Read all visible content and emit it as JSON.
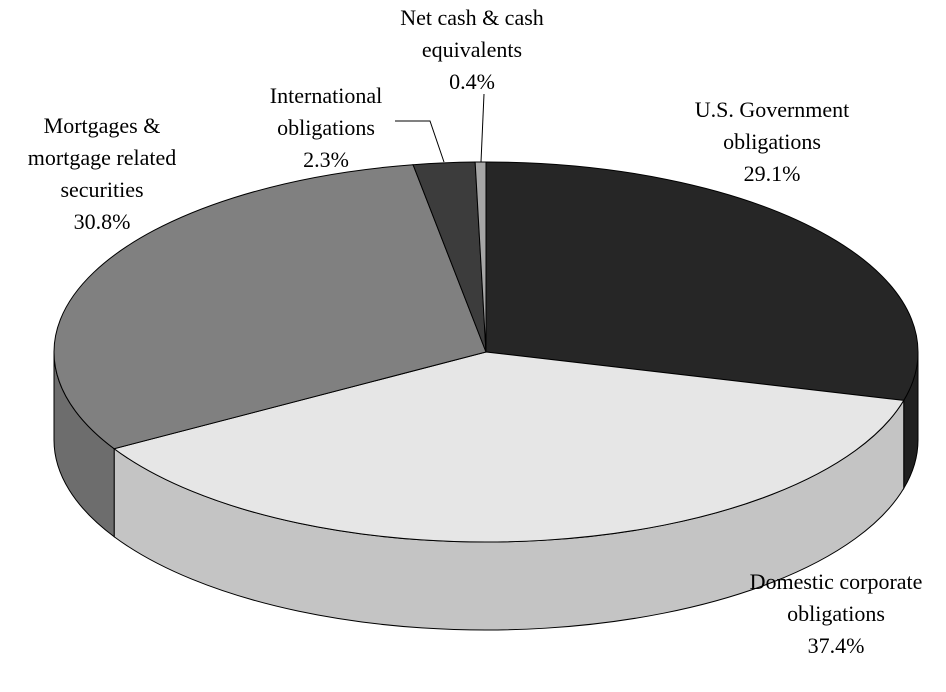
{
  "chart_data": {
    "type": "pie",
    "categories": [
      "U.S. Government obligations",
      "Domestic corporate obligations",
      "Mortgages & mortgage related securities",
      "International obligations",
      "Net cash & cash equivalents"
    ],
    "values": [
      29.1,
      37.4,
      30.8,
      2.3,
      0.4
    ],
    "value_labels": [
      "29.1%",
      "37.4%",
      "30.8%",
      "2.3%",
      "0.4%"
    ],
    "colors": [
      "#262626",
      "#e6e6e6",
      "#808080",
      "#3c3c3c",
      "#a6a6a6"
    ]
  }
}
